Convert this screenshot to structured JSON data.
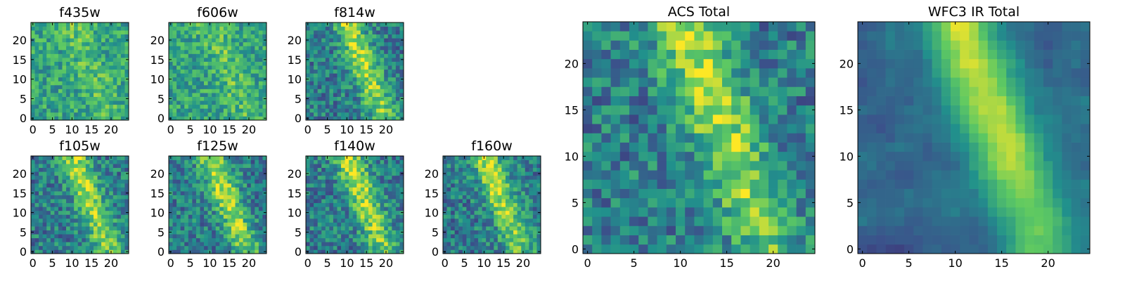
{
  "chart_data": [
    {
      "type": "heatmap",
      "title": "f435w",
      "xlim": [
        0,
        25
      ],
      "ylim": [
        0,
        25
      ],
      "xticks": [
        0,
        5,
        10,
        15,
        20
      ],
      "yticks": [
        0,
        5,
        10,
        15,
        20
      ],
      "structure": "faint",
      "seed": 11
    },
    {
      "type": "heatmap",
      "title": "f606w",
      "xlim": [
        0,
        25
      ],
      "ylim": [
        0,
        25
      ],
      "xticks": [
        0,
        5,
        10,
        15,
        20
      ],
      "yticks": [
        0,
        5,
        10,
        15,
        20
      ],
      "structure": "faint",
      "seed": 23
    },
    {
      "type": "heatmap",
      "title": "f814w",
      "xlim": [
        0,
        25
      ],
      "ylim": [
        0,
        25
      ],
      "xticks": [
        0,
        5,
        10,
        15,
        20
      ],
      "yticks": [
        0,
        5,
        10,
        15,
        20
      ],
      "structure": "band",
      "seed": 37
    },
    {
      "type": "heatmap",
      "title": "f105w",
      "xlim": [
        0,
        25
      ],
      "ylim": [
        0,
        25
      ],
      "xticks": [
        0,
        5,
        10,
        15,
        20
      ],
      "yticks": [
        0,
        5,
        10,
        15,
        20
      ],
      "structure": "band",
      "seed": 41
    },
    {
      "type": "heatmap",
      "title": "f125w",
      "xlim": [
        0,
        25
      ],
      "ylim": [
        0,
        25
      ],
      "xticks": [
        0,
        5,
        10,
        15,
        20
      ],
      "yticks": [
        0,
        5,
        10,
        15,
        20
      ],
      "structure": "band",
      "seed": 53
    },
    {
      "type": "heatmap",
      "title": "f140w",
      "xlim": [
        0,
        25
      ],
      "ylim": [
        0,
        25
      ],
      "xticks": [
        0,
        5,
        10,
        15,
        20
      ],
      "yticks": [
        0,
        5,
        10,
        15,
        20
      ],
      "structure": "band",
      "seed": 67
    },
    {
      "type": "heatmap",
      "title": "f160w",
      "xlim": [
        0,
        25
      ],
      "ylim": [
        0,
        25
      ],
      "xticks": [
        0,
        5,
        10,
        15,
        20
      ],
      "yticks": [
        0,
        5,
        10,
        15,
        20
      ],
      "structure": "band",
      "seed": 79
    },
    {
      "type": "heatmap",
      "title": "ACS Total",
      "xlim": [
        0,
        25
      ],
      "ylim": [
        0,
        25
      ],
      "xticks": [
        0,
        5,
        10,
        15,
        20
      ],
      "yticks": [
        0,
        5,
        10,
        15,
        20
      ],
      "structure": "band",
      "seed": 83
    },
    {
      "type": "heatmap",
      "title": "WFC3 IR Total",
      "xlim": [
        0,
        25
      ],
      "ylim": [
        0,
        25
      ],
      "xticks": [
        0,
        5,
        10,
        15,
        20
      ],
      "yticks": [
        0,
        5,
        10,
        15,
        20
      ],
      "structure": "smooth-band",
      "seed": 97
    }
  ],
  "colors": {
    "colormap": [
      "#440154",
      "#3b528b",
      "#21918c",
      "#5ec962",
      "#fde725"
    ]
  }
}
